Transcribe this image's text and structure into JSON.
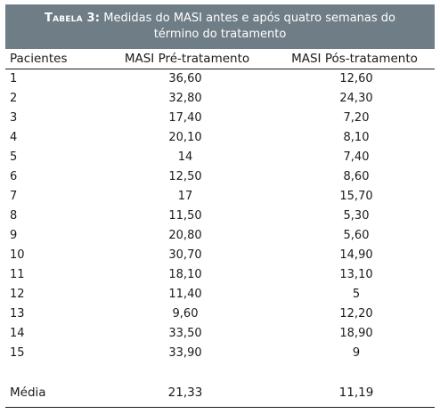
{
  "table": {
    "caption_label": "Tabela 3:",
    "caption_text": "Medidas do MASI antes e após quatro semanas do término do tratamento",
    "headers": [
      "Pacientes",
      "MASI Pré-tratamento",
      "MASI Pós-tratamento"
    ],
    "rows": [
      [
        "1",
        "36,60",
        "12,60"
      ],
      [
        "2",
        "32,80",
        "24,30"
      ],
      [
        "3",
        "17,40",
        "7,20"
      ],
      [
        "4",
        "20,10",
        "8,10"
      ],
      [
        "5",
        "14",
        "7,40"
      ],
      [
        "6",
        "12,50",
        "8,60"
      ],
      [
        "7",
        "17",
        "15,70"
      ],
      [
        "8",
        "11,50",
        "5,30"
      ],
      [
        "9",
        "20,80",
        "5,60"
      ],
      [
        "10",
        "30,70",
        "14,90"
      ],
      [
        "11",
        "18,10",
        "13,10"
      ],
      [
        "12",
        "11,40",
        "5"
      ],
      [
        "13",
        "9,60",
        "12,20"
      ],
      [
        "14",
        "33,50",
        "18,90"
      ],
      [
        "15",
        "33,90",
        "9"
      ]
    ],
    "footer": [
      "Média",
      "21,33",
      "11,19"
    ]
  },
  "colors": {
    "caption_background": "#6e7d86",
    "caption_text": "#ffffff",
    "text": "#1a1a1a"
  }
}
